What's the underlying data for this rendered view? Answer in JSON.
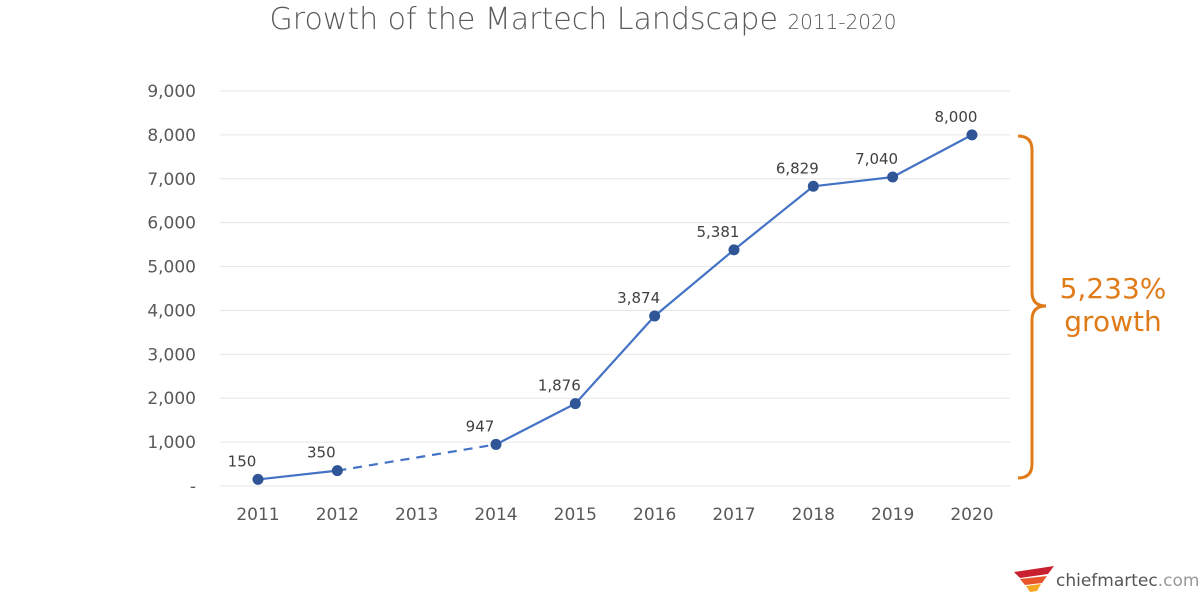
{
  "chart_data": {
    "type": "line",
    "title": "Growth of the Martech Landscape",
    "subtitle": "2011-2020",
    "categories": [
      "2011",
      "2012",
      "2013",
      "2014",
      "2015",
      "2016",
      "2017",
      "2018",
      "2019",
      "2020"
    ],
    "series": [
      {
        "values": [
          150,
          350,
          null,
          947,
          1876,
          3874,
          5381,
          6829,
          7040,
          8000
        ]
      }
    ],
    "data_labels": [
      "150",
      "350",
      "",
      "947",
      "1,876",
      "3,874",
      "5,381",
      "6,829",
      "7,040",
      "8,000"
    ],
    "dashed_segment": [
      "2012",
      "2014"
    ],
    "yticks": [
      "-",
      "1,000",
      "2,000",
      "3,000",
      "4,000",
      "5,000",
      "6,000",
      "7,000",
      "8,000",
      "9,000"
    ],
    "ylim": [
      0,
      9000
    ],
    "grid": true,
    "line_color": "#4472C4",
    "marker_color": "#2F5597",
    "annotation": {
      "line1": "5,233%",
      "line2": "growth",
      "color": "#E07B1A"
    }
  },
  "logo": {
    "text": "chiefmartec",
    "suffix": ".com"
  }
}
